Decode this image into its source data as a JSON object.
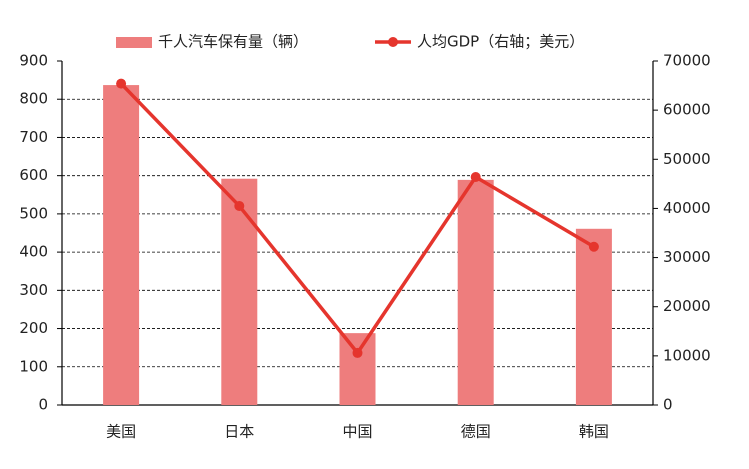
{
  "chart_data": {
    "type": "bar",
    "categories": [
      "美国",
      "日本",
      "中国",
      "德国",
      "韩国"
    ],
    "series": [
      {
        "name": "千人汽车保有量（辆）",
        "color": "#ee7d7d",
        "mark": "bar",
        "values": [
          837,
          592,
          188,
          589,
          461
        ]
      },
      {
        "name": "人均GDP（右轴；美元）",
        "color": "#e5352d",
        "mark": "line",
        "axis": "y2",
        "values": [
          65400,
          40500,
          10600,
          46400,
          32200
        ]
      }
    ],
    "ylim": [
      0,
      900
    ],
    "yticks": [
      0,
      100,
      200,
      300,
      400,
      500,
      600,
      700,
      800,
      900
    ],
    "y2lim": [
      0,
      70000
    ],
    "y2ticks": [
      0,
      10000,
      20000,
      30000,
      40000,
      50000,
      60000,
      70000
    ],
    "grid": true,
    "legend": "top"
  }
}
